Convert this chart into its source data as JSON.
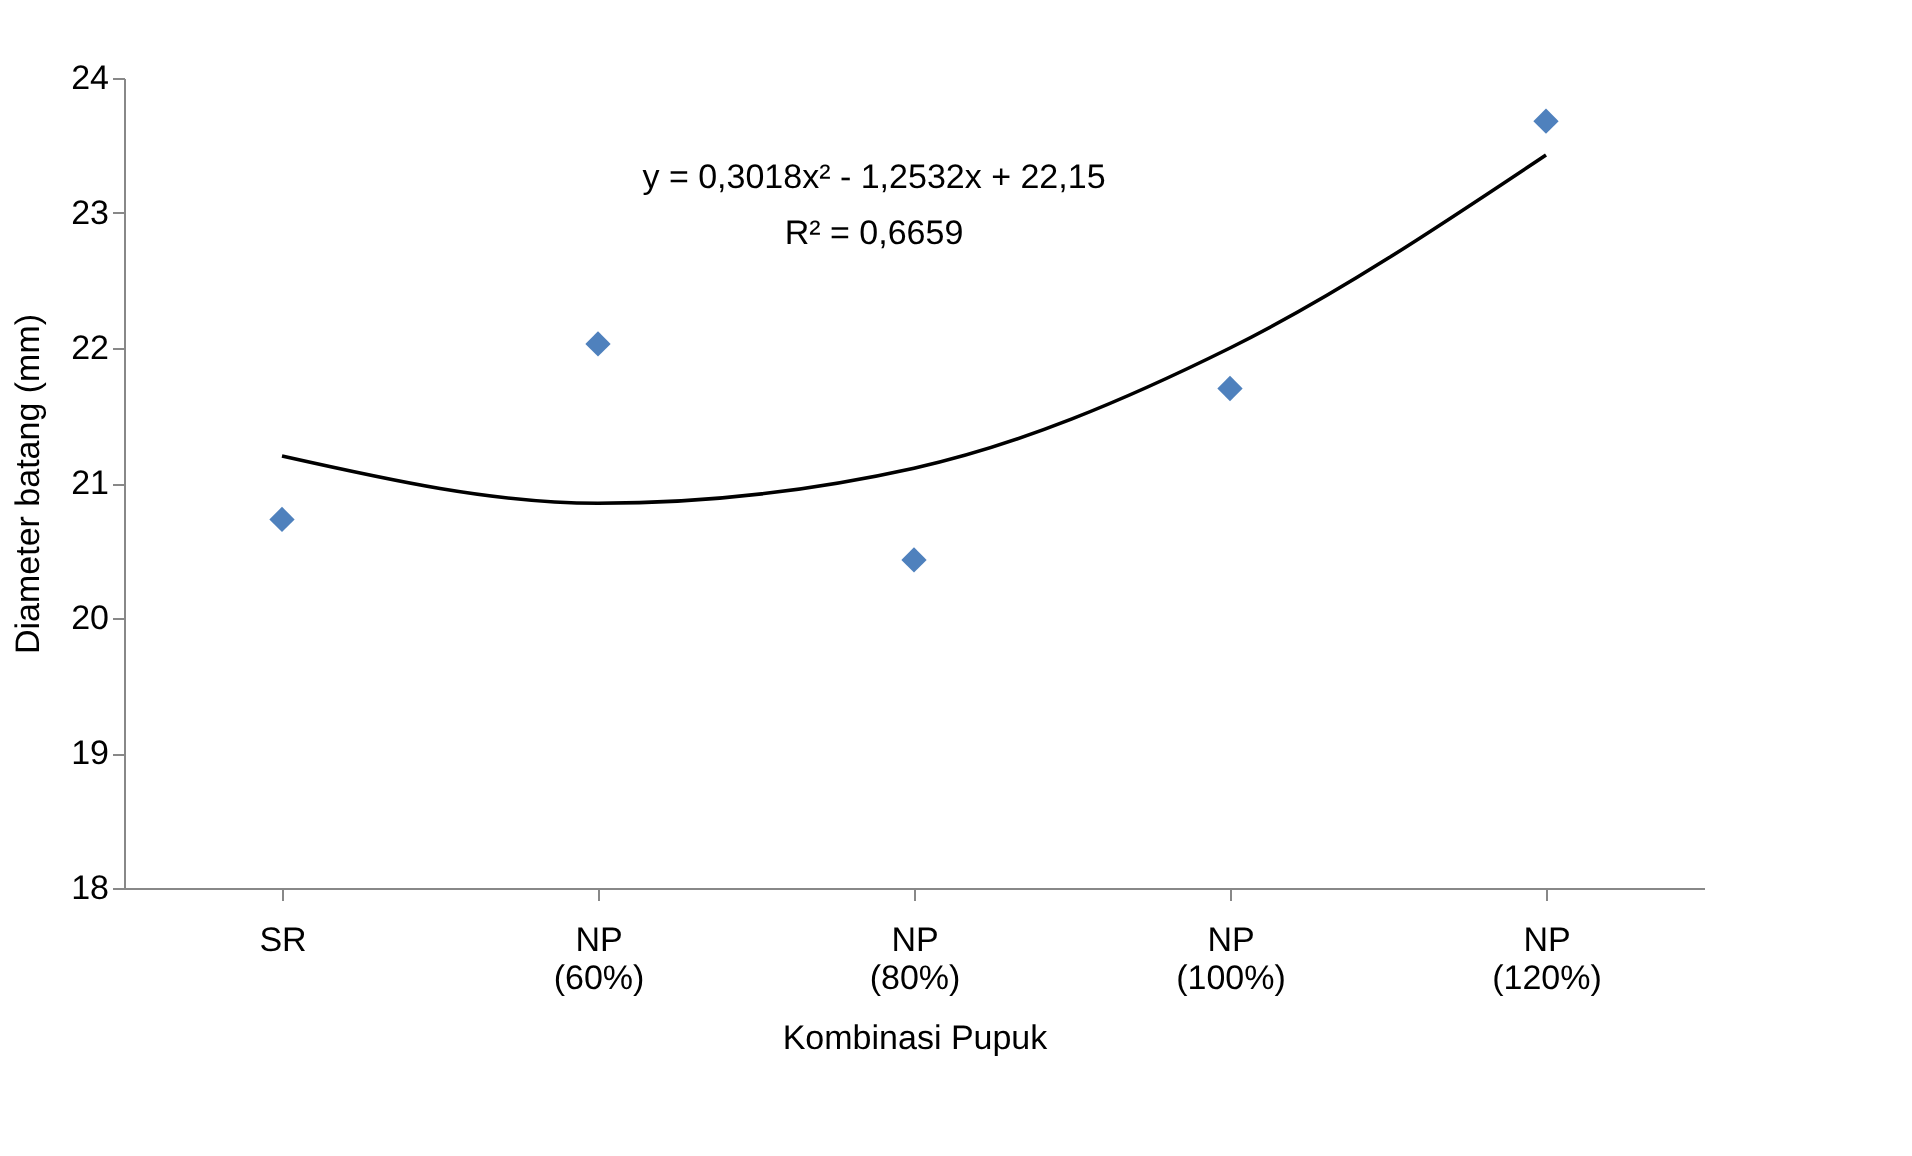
{
  "chart_data": {
    "type": "scatter",
    "xlabel": "Kombinasi Pupuk",
    "ylabel": "Diameter batang (mm)",
    "categories": [
      "SR",
      "NP (60%)",
      "NP (80%)",
      "NP (100%)",
      "NP (120%)"
    ],
    "series": [
      {
        "color": "#4f81bd",
        "values": [
          20.73,
          22.03,
          20.43,
          21.7,
          23.68
        ]
      },
      {
        "type": "line",
        "color": "#000000",
        "marker": "none",
        "x": [
          "SR",
          "NP (60%)",
          "NP (80%)",
          "NP (100%)",
          "NP (120%)"
        ],
        "values": [
          21.2,
          20.85,
          21.11,
          22.0,
          23.43
        ]
      }
    ],
    "annotations": [
      "y = 0,3018x² - 1,2532x + 22,15",
      "R² = 0,6659"
    ],
    "ylim": [
      18,
      24
    ],
    "yticks": [
      18,
      19,
      20,
      21,
      22,
      23,
      24
    ],
    "grid": false,
    "marker": "diamond"
  }
}
